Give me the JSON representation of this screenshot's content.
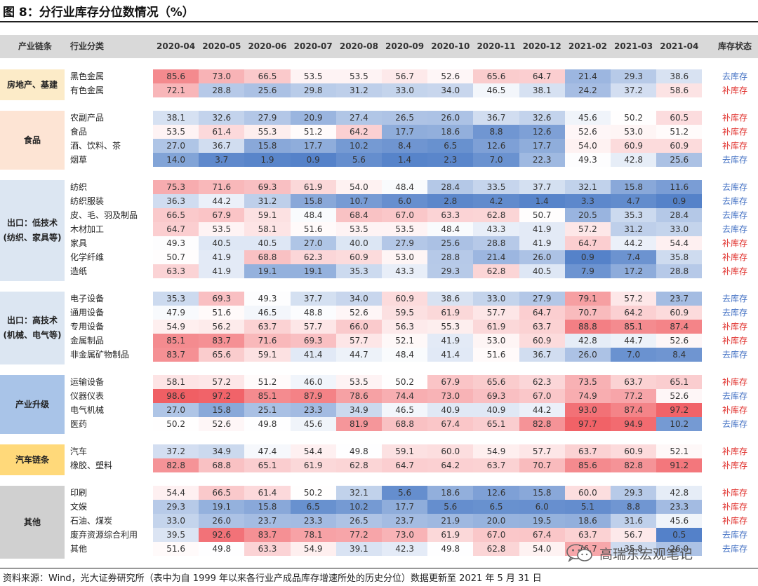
{
  "title": "图 8：分行业库存分位数情况（%）",
  "header": {
    "chain": "产业链条",
    "industry": "行业分类",
    "months": [
      "2020-04",
      "2020-05",
      "2020-06",
      "2020-07",
      "2020-08",
      "2020-09",
      "2020-10",
      "2020-11",
      "2020-12",
      "2021-02",
      "2021-03",
      "2021-04"
    ],
    "status": "库存状态"
  },
  "status_colors": {
    "去库存": "#4472c4",
    "补库存": "#e0302c"
  },
  "groups": [
    {
      "label": "房地产、基建",
      "color": "#fcebc8",
      "rows": [
        {
          "name": "黑色金属",
          "values": [
            85.6,
            73.0,
            66.5,
            53.5,
            53.5,
            56.7,
            52.6,
            65.6,
            64.7,
            21.4,
            29.3,
            38.6
          ],
          "status": "去库存"
        },
        {
          "name": "有色金属",
          "values": [
            72.1,
            28.8,
            25.6,
            29.8,
            31.2,
            33.0,
            34.0,
            46.5,
            38.1,
            24.2,
            37.2,
            58.6
          ],
          "status": "补库存"
        }
      ]
    },
    {
      "label": "食品",
      "color": "#fde4d4",
      "rows": [
        {
          "name": "农副产品",
          "values": [
            38.1,
            32.6,
            27.9,
            20.9,
            27.4,
            26.5,
            26.0,
            36.7,
            32.6,
            45.6,
            50.2,
            60.5
          ],
          "status": "补库存"
        },
        {
          "name": "食品",
          "values": [
            53.5,
            61.4,
            55.3,
            51.2,
            64.2,
            17.7,
            18.6,
            8.8,
            12.6,
            52.6,
            53.0,
            51.2
          ],
          "status": "补库存"
        },
        {
          "name": "酒、饮料、茶",
          "values": [
            27.0,
            36.7,
            15.8,
            17.7,
            10.2,
            8.4,
            6.5,
            12.6,
            17.7,
            54.0,
            60.9,
            60.9
          ],
          "status": "补库存"
        },
        {
          "name": "烟草",
          "values": [
            14.0,
            3.7,
            1.9,
            0.9,
            5.6,
            1.4,
            2.3,
            7.0,
            22.3,
            49.3,
            42.8,
            25.6
          ],
          "status": "去库存"
        }
      ]
    },
    {
      "label": "出口：低技术(纺织、家具等)",
      "color": "#dce6f2",
      "rows": [
        {
          "name": "纺织",
          "values": [
            75.3,
            71.6,
            69.3,
            61.9,
            54.0,
            48.4,
            28.4,
            33.5,
            37.7,
            32.1,
            15.8,
            11.6
          ],
          "status": "去库存"
        },
        {
          "name": "纺织服装",
          "values": [
            36.3,
            44.2,
            31.2,
            15.8,
            10.7,
            6.0,
            2.8,
            4.2,
            1.4,
            3.3,
            4.7,
            0.9
          ],
          "status": "去库存"
        },
        {
          "name": "皮、毛、羽及制品",
          "values": [
            66.5,
            67.9,
            59.1,
            48.4,
            68.4,
            67.0,
            63.3,
            62.8,
            50.7,
            20.5,
            35.3,
            28.4
          ],
          "status": "去库存"
        },
        {
          "name": "木材加工",
          "values": [
            64.7,
            53.5,
            58.1,
            51.6,
            53.5,
            53.5,
            48.4,
            43.3,
            41.9,
            57.2,
            31.2,
            33.0
          ],
          "status": "去库存"
        },
        {
          "name": "家具",
          "values": [
            49.3,
            40.5,
            40.5,
            27.0,
            40.0,
            27.9,
            25.6,
            28.8,
            41.9,
            64.7,
            44.2,
            54.4
          ],
          "status": "补库存"
        },
        {
          "name": "化学纤维",
          "values": [
            50.7,
            41.9,
            68.8,
            62.3,
            60.9,
            53.0,
            28.8,
            21.4,
            26.0,
            0.9,
            7.4,
            35.8
          ],
          "status": "补库存"
        },
        {
          "name": "造纸",
          "values": [
            63.3,
            41.9,
            19.1,
            19.1,
            35.3,
            43.3,
            29.3,
            62.8,
            40.5,
            7.9,
            17.2,
            28.8
          ],
          "status": "补库存"
        }
      ]
    },
    {
      "label": "出口：高技术(机械、电气等)",
      "color": "#dce6f2",
      "rows": [
        {
          "name": "电子设备",
          "values": [
            35.3,
            69.3,
            49.3,
            37.7,
            34.0,
            60.9,
            38.6,
            33.0,
            27.9,
            79.1,
            57.2,
            23.7
          ],
          "status": "去库存"
        },
        {
          "name": "通用设备",
          "values": [
            47.9,
            51.6,
            46.5,
            48.8,
            52.6,
            59.5,
            61.9,
            57.7,
            64.7,
            70.7,
            64.2,
            60.9
          ],
          "status": "去库存"
        },
        {
          "name": "专用设备",
          "values": [
            54.9,
            56.2,
            63.7,
            57.7,
            66.0,
            56.3,
            55.3,
            61.9,
            63.7,
            88.8,
            85.1,
            87.4
          ],
          "status": "补库存"
        },
        {
          "name": "金属制品",
          "values": [
            85.1,
            83.7,
            71.6,
            69.3,
            57.7,
            52.1,
            41.9,
            53.0,
            60.9,
            42.8,
            44.7,
            52.6
          ],
          "status": "补库存"
        },
        {
          "name": "非金属矿物制品",
          "values": [
            83.7,
            65.6,
            59.1,
            41.4,
            44.7,
            48.4,
            41.4,
            51.6,
            36.7,
            26.0,
            7.0,
            8.4
          ],
          "status": "去库存"
        }
      ]
    },
    {
      "label": "产业升级",
      "color": "#a9c4e8",
      "rows": [
        {
          "name": "运输设备",
          "values": [
            58.1,
            57.2,
            51.2,
            46.0,
            53.5,
            50.2,
            67.9,
            65.6,
            62.3,
            73.5,
            63.7,
            65.1
          ],
          "status": "补库存"
        },
        {
          "name": "仪器仪表",
          "values": [
            98.6,
            97.2,
            85.1,
            87.9,
            78.6,
            74.4,
            73.0,
            69.3,
            67.0,
            74.9,
            77.2,
            52.6
          ],
          "status": "去库存"
        },
        {
          "name": "电气机械",
          "values": [
            27.0,
            15.8,
            25.1,
            23.3,
            34.9,
            46.5,
            40.9,
            40.9,
            44.2,
            93.0,
            87.4,
            97.2
          ],
          "status": "补库存"
        },
        {
          "name": "医药",
          "values": [
            50.2,
            52.6,
            49.8,
            45.6,
            81.9,
            68.8,
            67.4,
            65.1,
            82.8,
            97.7,
            94.9,
            10.2
          ],
          "status": "去库存"
        }
      ]
    },
    {
      "label": "汽车链条",
      "color": "#ffd97a",
      "rows": [
        {
          "name": "汽车",
          "values": [
            37.2,
            34.9,
            47.4,
            54.4,
            49.8,
            59.1,
            60.0,
            54.9,
            57.7,
            63.7,
            60.9,
            52.1
          ],
          "status": "补库存"
        },
        {
          "name": "橡胶、塑料",
          "values": [
            82.8,
            68.8,
            65.1,
            61.9,
            62.8,
            64.7,
            64.2,
            63.7,
            70.7,
            85.6,
            82.8,
            91.2
          ],
          "status": "补库存"
        }
      ]
    },
    {
      "label": "其他",
      "color": "#d0d0d0",
      "rows": [
        {
          "name": "印刷",
          "values": [
            54.4,
            66.5,
            61.4,
            50.2,
            32.1,
            5.6,
            18.6,
            12.6,
            15.8,
            60.0,
            29.3,
            42.8
          ],
          "status": "补库存"
        },
        {
          "name": "文娱",
          "values": [
            29.3,
            19.1,
            15.8,
            6.5,
            10.2,
            17.7,
            5.6,
            6.5,
            6.0,
            5.1,
            8.8,
            23.3
          ],
          "status": "补库存"
        },
        {
          "name": "石油、煤炭",
          "values": [
            33.0,
            26.0,
            23.7,
            23.3,
            26.5,
            23.7,
            21.9,
            20.0,
            19.5,
            18.6,
            31.6,
            45.6
          ],
          "status": "补库存"
        },
        {
          "name": "废弃资源综合利用",
          "values": [
            39.5,
            92.6,
            83.7,
            78.1,
            77.2,
            73.0,
            61.9,
            67.0,
            67.4,
            63.7,
            56.7,
            0.5
          ],
          "status": "去库存"
        },
        {
          "name": "其他",
          "values": [
            51.6,
            49.8,
            63.3,
            54.9,
            39.1,
            42.3,
            49.8,
            62.8,
            54.0,
            76.7,
            35.8,
            26.0
          ],
          "status": "去库存"
        }
      ]
    }
  ],
  "watermark": "高瑞东宏观笔记",
  "source": "资料来源：Wind，光大证券研究所（表中为自 1999 年以来各行业产成品库存增速所处的历史分位）数据更新至 2021 年 5 月 31 日"
}
